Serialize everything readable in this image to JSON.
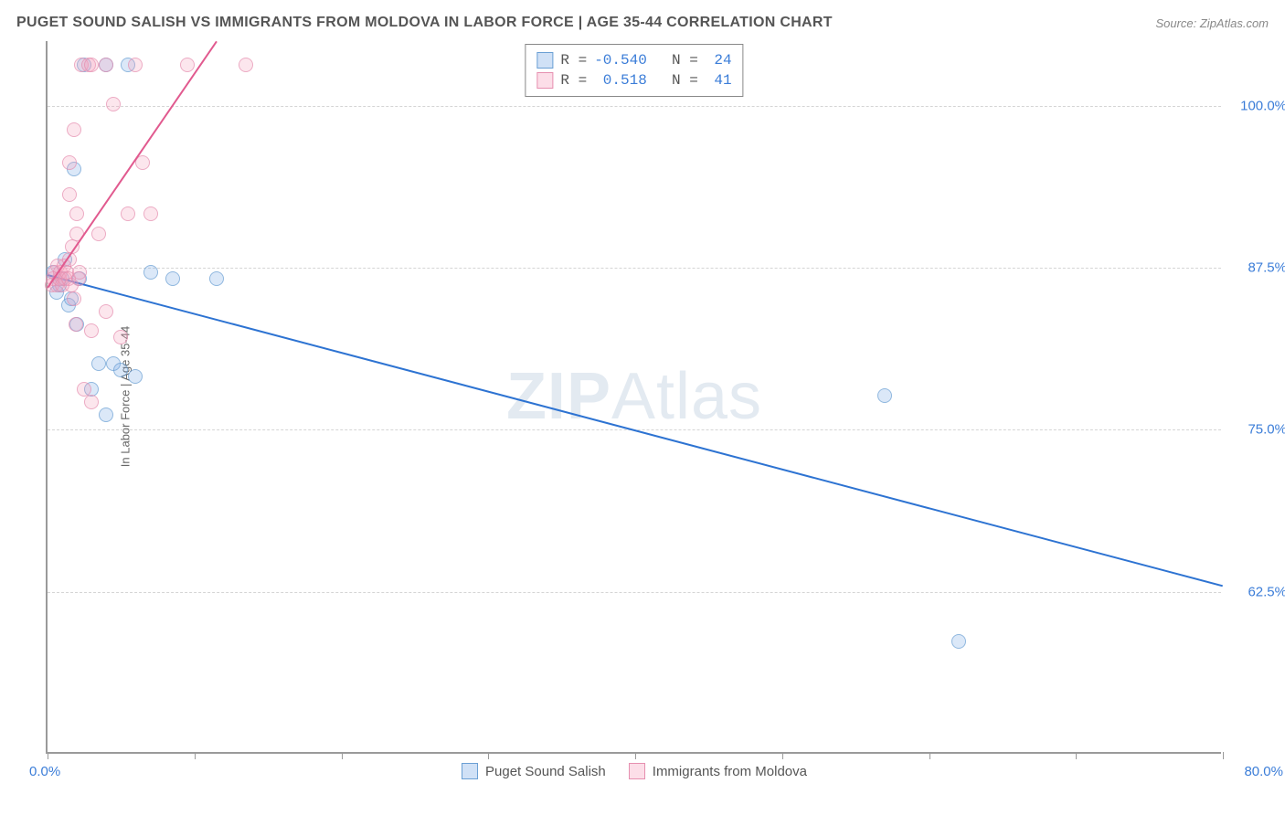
{
  "title": "PUGET SOUND SALISH VS IMMIGRANTS FROM MOLDOVA IN LABOR FORCE | AGE 35-44 CORRELATION CHART",
  "source": "Source: ZipAtlas.com",
  "watermark_a": "ZIP",
  "watermark_b": "Atlas",
  "ylabel": "In Labor Force | Age 35-44",
  "chart": {
    "type": "scatter",
    "xlim": [
      0,
      80
    ],
    "ylim": [
      50,
      105
    ],
    "xticks": [
      0,
      10,
      20,
      30,
      40,
      50,
      60,
      70,
      80
    ],
    "xtick_labels": {
      "left": "0.0%",
      "right": "80.0%"
    },
    "yticks": [
      62.5,
      75.0,
      87.5,
      100.0
    ],
    "ytick_labels": [
      "62.5%",
      "75.0%",
      "87.5%",
      "100.0%"
    ],
    "grid_color": "#d5d5d5",
    "axis_color": "#9a9a9a",
    "background_color": "#ffffff",
    "label_color": "#3b7dd8",
    "series": [
      {
        "name": "Puget Sound Salish",
        "color_fill": "rgba(120,170,230,0.35)",
        "color_stroke": "#6a9fd4",
        "trend_color": "#2d73d2",
        "R": "-0.540",
        "N": "24",
        "trend": {
          "x1": 0,
          "y1": 87.0,
          "x2": 80,
          "y2": 63.0
        },
        "points": [
          [
            0.4,
            87.0
          ],
          [
            0.6,
            85.5
          ],
          [
            0.8,
            86.0
          ],
          [
            1.0,
            86.5
          ],
          [
            1.2,
            88.0
          ],
          [
            1.4,
            84.5
          ],
          [
            1.6,
            85.0
          ],
          [
            1.8,
            95.0
          ],
          [
            2.0,
            83.0
          ],
          [
            2.2,
            86.5
          ],
          [
            2.5,
            103.0
          ],
          [
            3.0,
            78.0
          ],
          [
            3.5,
            80.0
          ],
          [
            4.0,
            76.0
          ],
          [
            4.0,
            103.0
          ],
          [
            4.5,
            80.0
          ],
          [
            5.0,
            79.5
          ],
          [
            5.5,
            103.0
          ],
          [
            6.0,
            79.0
          ],
          [
            7.0,
            87.0
          ],
          [
            8.5,
            86.5
          ],
          [
            11.5,
            86.5
          ],
          [
            57.0,
            77.5
          ],
          [
            62.0,
            58.5
          ]
        ]
      },
      {
        "name": "Immigrants from Moldova",
        "color_fill": "rgba(245,160,190,0.35)",
        "color_stroke": "#e68fb0",
        "trend_color": "#e15a8f",
        "R": "0.518",
        "N": "41",
        "trend": {
          "x1": 0,
          "y1": 86.0,
          "x2": 11.5,
          "y2": 105.0
        },
        "points": [
          [
            0.3,
            86.0
          ],
          [
            0.4,
            86.5
          ],
          [
            0.5,
            87.0
          ],
          [
            0.6,
            86.0
          ],
          [
            0.7,
            87.5
          ],
          [
            0.8,
            86.5
          ],
          [
            0.9,
            87.0
          ],
          [
            1.0,
            86.0
          ],
          [
            1.1,
            87.5
          ],
          [
            1.2,
            86.5
          ],
          [
            1.3,
            87.0
          ],
          [
            1.4,
            86.5
          ],
          [
            1.5,
            88.0
          ],
          [
            1.6,
            86.0
          ],
          [
            1.7,
            89.0
          ],
          [
            1.8,
            85.0
          ],
          [
            1.9,
            83.0
          ],
          [
            2.0,
            90.0
          ],
          [
            2.1,
            86.5
          ],
          [
            2.2,
            87.0
          ],
          [
            1.5,
            93.0
          ],
          [
            1.5,
            95.5
          ],
          [
            1.8,
            98.0
          ],
          [
            2.0,
            91.5
          ],
          [
            2.3,
            103.0
          ],
          [
            2.5,
            78.0
          ],
          [
            2.8,
            103.0
          ],
          [
            3.0,
            103.0
          ],
          [
            3.0,
            82.5
          ],
          [
            3.0,
            77.0
          ],
          [
            3.5,
            90.0
          ],
          [
            4.0,
            103.0
          ],
          [
            4.0,
            84.0
          ],
          [
            4.5,
            100.0
          ],
          [
            5.0,
            82.0
          ],
          [
            5.5,
            91.5
          ],
          [
            6.0,
            103.0
          ],
          [
            6.5,
            95.5
          ],
          [
            7.0,
            91.5
          ],
          [
            9.5,
            103.0
          ],
          [
            13.5,
            103.0
          ]
        ]
      }
    ]
  },
  "legend_top_label_r": "R =",
  "legend_top_label_n": "N =",
  "legend_bottom": [
    {
      "label": "Puget Sound Salish"
    },
    {
      "label": "Immigrants from Moldova"
    }
  ]
}
